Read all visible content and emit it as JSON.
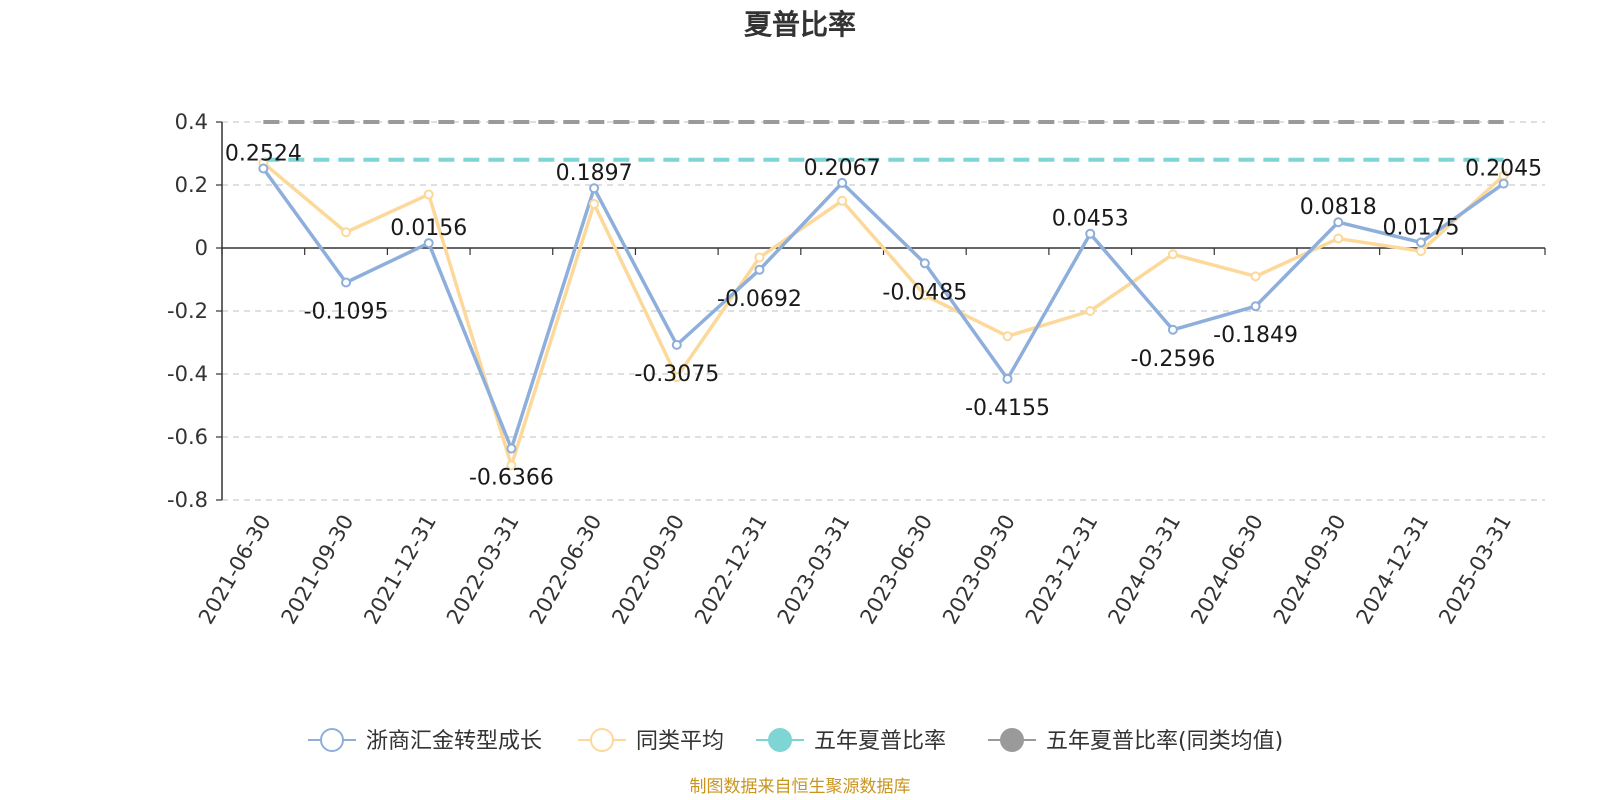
{
  "chart_data": {
    "type": "line",
    "title": "夏普比率",
    "categories": [
      "2021-06-30",
      "2021-09-30",
      "2021-12-31",
      "2022-03-31",
      "2022-06-30",
      "2022-09-30",
      "2022-12-31",
      "2023-03-31",
      "2023-06-30",
      "2023-09-30",
      "2023-12-31",
      "2024-03-31",
      "2024-06-30",
      "2024-09-30",
      "2024-12-31",
      "2025-03-31"
    ],
    "ylim": [
      -0.8,
      0.4
    ],
    "yticks": [
      0.4,
      0.2,
      0,
      -0.2,
      -0.4,
      -0.6,
      -0.8
    ],
    "ytick_labels": [
      "0.4",
      "0.2",
      "0",
      "-0.2",
      "-0.4",
      "-0.6",
      "-0.8"
    ],
    "grid": true,
    "legend_position": "bottom",
    "series": [
      {
        "name": "浙商汇金转型成长",
        "color": "#8eaedb",
        "style": "line",
        "values": [
          0.2524,
          -0.1095,
          0.0156,
          -0.6366,
          0.1897,
          -0.3075,
          -0.0692,
          0.2067,
          -0.0485,
          -0.4155,
          0.0453,
          -0.2596,
          -0.1849,
          0.0818,
          0.0175,
          0.2045
        ],
        "labels": [
          "0.2524",
          "-0.1095",
          "0.0156",
          "-0.6366",
          "0.1897",
          "-0.3075",
          "-0.0692",
          "0.2067",
          "-0.0485",
          "-0.4155",
          "0.0453",
          "-0.2596",
          "-0.1849",
          "0.0818",
          "0.0175",
          "0.2045"
        ]
      },
      {
        "name": "同类平均",
        "color": "#fcd99b",
        "style": "line",
        "values": [
          0.27,
          0.05,
          0.17,
          -0.69,
          0.14,
          -0.41,
          -0.03,
          0.15,
          -0.15,
          -0.28,
          -0.2,
          -0.02,
          -0.09,
          0.03,
          -0.01,
          0.23
        ]
      },
      {
        "name": "五年夏普比率",
        "color": "#7fd4d4",
        "style": "dashed",
        "value": 0.28
      },
      {
        "name": "五年夏普比率(同类均值)",
        "color": "#9a9a9a",
        "style": "dashed",
        "value": 0.4
      }
    ]
  },
  "source_text": "制图数据来自恒生聚源数据库"
}
